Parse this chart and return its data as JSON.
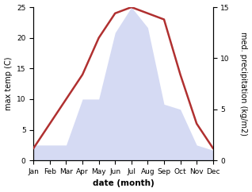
{
  "months": [
    "Jan",
    "Feb",
    "Mar",
    "Apr",
    "May",
    "Jun",
    "Jul",
    "Aug",
    "Sep",
    "Oct",
    "Nov",
    "Dec"
  ],
  "month_indices": [
    1,
    2,
    3,
    4,
    5,
    6,
    7,
    8,
    9,
    10,
    11,
    12
  ],
  "temp_max": [
    2.0,
    6.0,
    10.0,
    14.0,
    20.0,
    24.0,
    25.0,
    24.0,
    23.0,
    14.0,
    6.0,
    2.0
  ],
  "precipitation": [
    1.5,
    1.5,
    1.5,
    6.0,
    6.0,
    12.5,
    15.0,
    13.0,
    5.5,
    5.0,
    1.5,
    1.0
  ],
  "temp_color": "#b03030",
  "precip_color_fill": "#c8cef0",
  "temp_ylim": [
    0,
    25
  ],
  "precip_ylim": [
    0,
    15
  ],
  "ylabel_left": "max temp (C)",
  "ylabel_right": "med. precipitation (kg/m2)",
  "xlabel": "date (month)",
  "background_color": "#ffffff",
  "fill_alpha": 0.75,
  "temp_linewidth": 1.8,
  "tick_fontsize": 6.5,
  "label_fontsize": 7.0,
  "xlabel_fontsize": 7.5
}
